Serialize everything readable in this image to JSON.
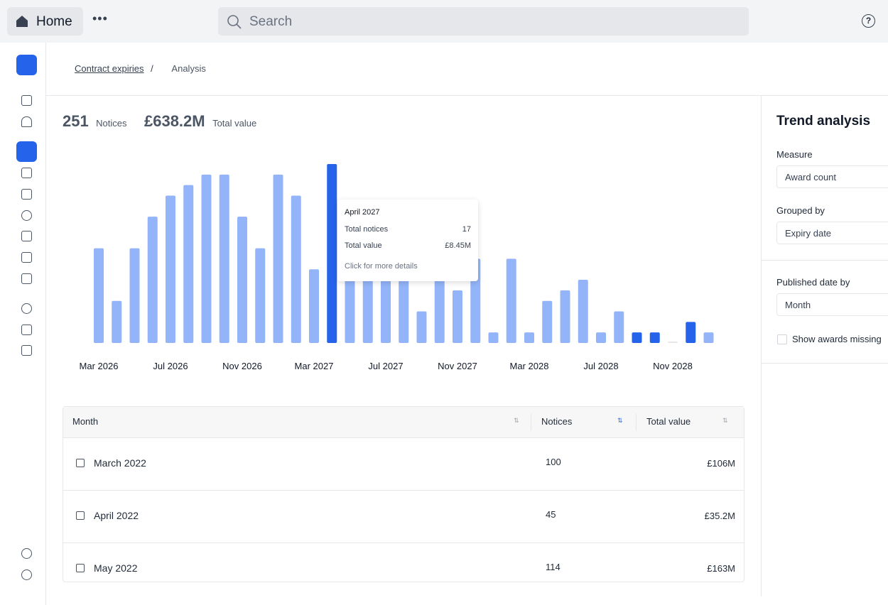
{
  "topbar": {
    "home": "Home",
    "search": "Search"
  },
  "breadcrumb": {
    "parent": "Contract expiries",
    "separator": "/",
    "current": "Analysis"
  },
  "stats": {
    "notices_value": "251",
    "notices_label": "Notices",
    "total_value": "£638.2M",
    "total_label": "Total value"
  },
  "chart_data": {
    "type": "bar",
    "categories": [
      "Mar 2026",
      null,
      null,
      null,
      "Jul 2026",
      null,
      null,
      null,
      "Nov 2026",
      null,
      null,
      null,
      "Mar 2027",
      null,
      null,
      null,
      "Jul 2027",
      null,
      null,
      null,
      "Nov 2027",
      null,
      null,
      null,
      "Mar 2028",
      null,
      null,
      null,
      "Jul 2028",
      null,
      null,
      null,
      "Nov 2028",
      null,
      null
    ],
    "values": [
      9,
      4,
      9,
      12,
      14,
      15,
      16,
      16,
      12,
      9,
      16,
      14,
      7,
      17,
      7,
      6,
      6,
      6,
      3,
      6,
      5,
      8,
      1,
      8,
      1,
      4,
      5,
      6,
      1,
      3,
      1,
      1,
      0,
      2,
      1
    ],
    "colors": [
      "#93b4f8",
      "#93b4f8",
      "#93b4f8",
      "#93b4f8",
      "#93b4f8",
      "#93b4f8",
      "#93b4f8",
      "#93b4f8",
      "#93b4f8",
      "#93b4f8",
      "#93b4f8",
      "#93b4f8",
      "#93b4f8",
      "#2563eb",
      "#93b4f8",
      "#93b4f8",
      "#93b4f8",
      "#93b4f8",
      "#93b4f8",
      "#93b4f8",
      "#93b4f8",
      "#93b4f8",
      "#93b4f8",
      "#93b4f8",
      "#93b4f8",
      "#93b4f8",
      "#93b4f8",
      "#93b4f8",
      "#93b4f8",
      "#93b4f8",
      "#2563eb",
      "#2563eb",
      "#e5e7eb",
      "#2563eb",
      "#93b4f8"
    ]
  },
  "tooltip": {
    "title": "April 2027",
    "rows": [
      [
        "Total notices",
        "17"
      ],
      [
        "Total value",
        "£8.45M"
      ]
    ],
    "footer": "Click for more details"
  },
  "table": {
    "columns": [
      "Month",
      "Notices",
      "Total value"
    ],
    "rows": [
      [
        "March 2022",
        100,
        "£106M"
      ],
      [
        "April 2022",
        45,
        "£35.2M"
      ],
      [
        "May 2022",
        114,
        "£163M"
      ]
    ]
  },
  "panel": {
    "title": "Trend analysis",
    "measure_label": "Measure",
    "measure_value": "Award count",
    "grouped_label": "Grouped by",
    "grouped_value": "Expiry date",
    "published_label": "Published date by",
    "published_value": "Month",
    "checkbox": "Show awards missing"
  }
}
